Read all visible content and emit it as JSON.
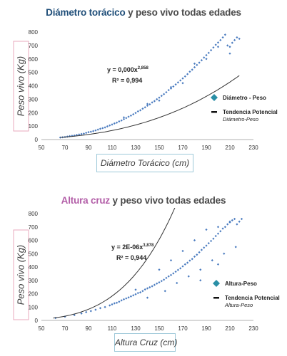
{
  "colors": {
    "title1_highlight": "#1f4e79",
    "title2_highlight": "#b35fa8",
    "points": "#4a7bbf",
    "trend": "#333333",
    "legend_marker": "#2a8fa6",
    "ylabel_border": "#e8a8bd",
    "xlabel_border": "#9ec9d9"
  },
  "chart_data": [
    {
      "type": "scatter",
      "title_highlight": "Diámetro torácico",
      "title_rest": " y peso vivo todas edades",
      "xlabel": "Diámetro Torácico (cm)",
      "ylabel": "Peso vivo (Kg)",
      "xlim": [
        50,
        230
      ],
      "ylim": [
        0,
        800
      ],
      "x_ticks": [
        50,
        70,
        90,
        110,
        130,
        150,
        170,
        190,
        210,
        230
      ],
      "y_ticks": [
        0,
        100,
        200,
        300,
        400,
        500,
        600,
        700,
        800
      ],
      "equation": "y = 0,000x",
      "equation_exp": "2,858",
      "r2": "R² = 0,994",
      "trend": {
        "a": 9.87e-05,
        "b": 2.858,
        "x_start": 66,
        "x_end": 218
      },
      "series": [
        {
          "name": "Diámetro - Peso",
          "marker": "diamond",
          "x": [
            66,
            68,
            70,
            72,
            74,
            76,
            78,
            80,
            82,
            84,
            86,
            88,
            90,
            92,
            94,
            96,
            98,
            100,
            102,
            104,
            106,
            108,
            110,
            112,
            114,
            116,
            118,
            120,
            122,
            124,
            126,
            128,
            130,
            132,
            134,
            136,
            138,
            140,
            142,
            144,
            146,
            148,
            150,
            152,
            154,
            156,
            158,
            160,
            162,
            164,
            166,
            168,
            170,
            172,
            174,
            176,
            178,
            180,
            182,
            184,
            186,
            188,
            190,
            192,
            194,
            196,
            198,
            200,
            202,
            204,
            206,
            208,
            210,
            212,
            214,
            216,
            218,
            120,
            140,
            160,
            180,
            200,
            150,
            170,
            190,
            210
          ],
          "y": [
            15,
            17,
            19,
            22,
            25,
            28,
            30,
            34,
            38,
            41,
            44,
            50,
            55,
            58,
            63,
            68,
            74,
            80,
            85,
            90,
            98,
            105,
            112,
            120,
            126,
            135,
            142,
            152,
            160,
            170,
            178,
            188,
            198,
            210,
            218,
            230,
            240,
            252,
            262,
            276,
            286,
            300,
            312,
            325,
            338,
            352,
            368,
            380,
            395,
            410,
            425,
            440,
            455,
            470,
            487,
            505,
            520,
            538,
            555,
            572,
            590,
            610,
            628,
            645,
            665,
            685,
            705,
            722,
            740,
            760,
            780,
            700,
            690,
            720,
            740,
            760,
            750,
            165,
            265,
            390,
            565,
            690,
            290,
            420,
            600,
            640
          ]
        }
      ],
      "legend": {
        "marker_label": "Diámetro - Peso",
        "line_label": "Tendencia Potencial",
        "line_sub": "Diámetro-Peso"
      }
    },
    {
      "type": "scatter",
      "title_highlight": "Altura cruz",
      "title_rest": " y peso vivo todas edades",
      "xlabel": "Altura Cruz (cm)",
      "ylabel": "Peso vivo (Kg)",
      "xlim": [
        50,
        230
      ],
      "ylim": [
        0,
        800
      ],
      "x_ticks": [
        50,
        70,
        90,
        110,
        130,
        150,
        170,
        190,
        210,
        230
      ],
      "y_ticks": [
        0,
        100,
        200,
        300,
        400,
        500,
        600,
        700,
        800
      ],
      "equation": "y = 2E-06x",
      "equation_exp": "3,878",
      "r2": "R² = 0,944",
      "trend": {
        "a": 2.21e-06,
        "b": 3.878,
        "x_start": 60,
        "x_end": 222
      },
      "series": [
        {
          "name": "Altura-Peso",
          "marker": "diamond",
          "x": [
            62,
            70,
            78,
            84,
            88,
            92,
            96,
            100,
            104,
            108,
            110,
            112,
            114,
            116,
            118,
            120,
            122,
            124,
            126,
            128,
            130,
            132,
            134,
            136,
            138,
            140,
            142,
            144,
            146,
            148,
            150,
            152,
            154,
            156,
            158,
            160,
            162,
            164,
            166,
            168,
            170,
            172,
            174,
            176,
            178,
            180,
            182,
            184,
            186,
            188,
            190,
            192,
            194,
            196,
            198,
            200,
            202,
            204,
            206,
            208,
            210,
            212,
            214,
            216,
            218,
            220,
            150,
            160,
            170,
            180,
            190,
            200,
            210,
            165,
            175,
            185,
            195,
            205,
            140,
            130,
            155,
            185,
            200,
            215
          ],
          "y": [
            18,
            28,
            40,
            52,
            62,
            70,
            80,
            92,
            100,
            112,
            120,
            128,
            132,
            140,
            150,
            158,
            165,
            172,
            180,
            188,
            196,
            205,
            210,
            220,
            232,
            240,
            248,
            256,
            266,
            276,
            285,
            295,
            305,
            318,
            330,
            340,
            352,
            365,
            378,
            390,
            405,
            420,
            432,
            448,
            460,
            478,
            492,
            510,
            528,
            545,
            560,
            578,
            595,
            612,
            632,
            650,
            668,
            688,
            700,
            720,
            735,
            750,
            760,
            720,
            740,
            760,
            380,
            450,
            520,
            600,
            680,
            700,
            740,
            280,
            330,
            380,
            450,
            500,
            170,
            230,
            220,
            300,
            420,
            550
          ]
        }
      ],
      "legend": {
        "marker_label": "Altura-Peso",
        "line_label": "Tendencia Potencial",
        "line_sub": "Altura-Peso"
      }
    }
  ]
}
